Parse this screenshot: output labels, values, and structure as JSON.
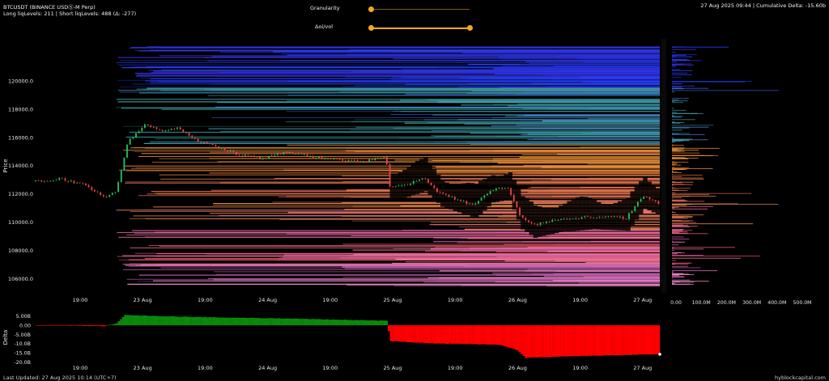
{
  "header": {
    "symbol": "BTCUSDT (BINANCE USDⓈ-M Perp)",
    "liq_levels": "Long liqLevels: 211 | Short liqLevels: 488 (Δ: -277)",
    "status": "27 Aug 2025 09:44 | Cumulative Delta: -15.60b"
  },
  "controls": {
    "granularity_label": "Granularity",
    "granularity_value": 0.0,
    "oivol_label": "Δoi/vol",
    "oivol_range": [
      0.0,
      1.0
    ]
  },
  "footer": {
    "last_updated": "Last Updated: 27 Aug 2025 10:14 (UTC+7)",
    "brand": "hyblockcapital.com"
  },
  "colors": {
    "candle_up": "#22c55e",
    "candle_down": "#ef4444",
    "delta_positive": "#0a8a0a",
    "delta_negative": "#ff0000",
    "slider": "#f5a623"
  },
  "chart_data": [
    {
      "type": "heatmap",
      "title": "",
      "ylabel": "Price",
      "ylim": [
        105000,
        123000
      ],
      "y_ticks": [
        106000,
        108000,
        110000,
        112000,
        114000,
        116000,
        118000,
        120000
      ],
      "y_tick_labels": [
        "106000.0",
        "108000.0",
        "110000.0",
        "112000.0",
        "114000.0",
        "116000.0",
        "118000.0",
        "120000.0"
      ],
      "x_tick_labels": [
        "19:00",
        "23 Aug",
        "19:00",
        "24 Aug",
        "19:00",
        "25 Aug",
        "19:00",
        "26 Aug",
        "19:00",
        "27 Aug"
      ],
      "price_path": [
        {
          "t": 0,
          "p": 112900
        },
        {
          "t": 3,
          "p": 113100
        },
        {
          "t": 6,
          "p": 112600
        },
        {
          "t": 8,
          "p": 111800
        },
        {
          "t": 9.5,
          "p": 112100
        },
        {
          "t": 11,
          "p": 115800
        },
        {
          "t": 13,
          "p": 116900
        },
        {
          "t": 15,
          "p": 116500
        },
        {
          "t": 17,
          "p": 116700
        },
        {
          "t": 19,
          "p": 115800
        },
        {
          "t": 21,
          "p": 115500
        },
        {
          "t": 24,
          "p": 114800
        },
        {
          "t": 27,
          "p": 114500
        },
        {
          "t": 30,
          "p": 115000
        },
        {
          "t": 33,
          "p": 114600
        },
        {
          "t": 36,
          "p": 114400
        },
        {
          "t": 39,
          "p": 114300
        },
        {
          "t": 41.5,
          "p": 114700
        },
        {
          "t": 42,
          "p": 112500
        },
        {
          "t": 44,
          "p": 112700
        },
        {
          "t": 46,
          "p": 113100
        },
        {
          "t": 48,
          "p": 112000
        },
        {
          "t": 50,
          "p": 111600
        },
        {
          "t": 52,
          "p": 111200
        },
        {
          "t": 54,
          "p": 112300
        },
        {
          "t": 56,
          "p": 112500
        },
        {
          "t": 57.5,
          "p": 110400
        },
        {
          "t": 59,
          "p": 109800
        },
        {
          "t": 62,
          "p": 110200
        },
        {
          "t": 66,
          "p": 110400
        },
        {
          "t": 70,
          "p": 110300
        },
        {
          "t": 72,
          "p": 111900
        },
        {
          "t": 74,
          "p": 111300
        }
      ],
      "right_profile_axis": {
        "ticks": [
          0,
          100,
          200,
          300,
          400,
          500
        ],
        "tick_labels": [
          "0.00",
          "100.0M",
          "200.0M",
          "300.0M",
          "400.0M",
          "500.0M"
        ]
      }
    },
    {
      "type": "area",
      "title": "",
      "ylabel": "Delta",
      "ylim": [
        -20,
        7
      ],
      "y_ticks": [
        5,
        0,
        -5,
        -10,
        -15,
        -20
      ],
      "y_tick_labels": [
        "5.00B",
        "0.00",
        "-5.00B",
        "-10.0B",
        "-15.0B",
        "-20.0B"
      ],
      "x_tick_labels": [
        "19:00",
        "23 Aug",
        "19:00",
        "24 Aug",
        "19:00",
        "25 Aug",
        "19:00",
        "26 Aug",
        "19:00",
        "27 Aug"
      ],
      "series": [
        {
          "points": [
            {
              "t": 0,
              "v": 0
            },
            {
              "t": 8,
              "v": -0.5
            },
            {
              "t": 9.5,
              "v": 1.0
            },
            {
              "t": 10.5,
              "v": 5.5
            },
            {
              "t": 14,
              "v": 5.0
            },
            {
              "t": 20,
              "v": 4.3
            },
            {
              "t": 30,
              "v": 3.6
            },
            {
              "t": 41.5,
              "v": 2.4
            },
            {
              "t": 42,
              "v": -8.5
            },
            {
              "t": 47,
              "v": -9.8
            },
            {
              "t": 52,
              "v": -10.2
            },
            {
              "t": 55,
              "v": -10.5
            },
            {
              "t": 57,
              "v": -13.5
            },
            {
              "t": 58,
              "v": -17.5
            },
            {
              "t": 65,
              "v": -16.5
            },
            {
              "t": 74,
              "v": -15.6
            }
          ]
        }
      ]
    }
  ]
}
